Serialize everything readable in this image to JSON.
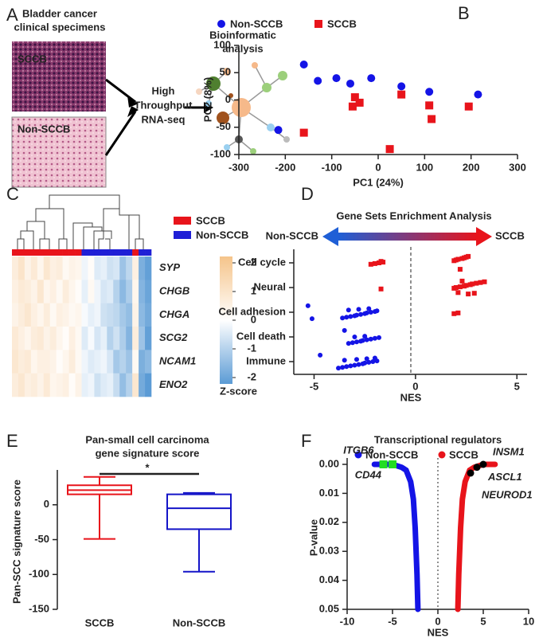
{
  "panel_labels": [
    "A",
    "B",
    "C",
    "D",
    "E",
    "F"
  ],
  "panel_a": {
    "title": [
      "Bladder cancer",
      "clinical specimens"
    ],
    "images": [
      "SCCB",
      "Non-SCCB"
    ],
    "method": [
      "High",
      "Throughput",
      "RNA-seq"
    ],
    "analysis": [
      "Bioinformatic",
      "analysis"
    ]
  },
  "chart_data": [
    {
      "type": "scatter",
      "xlabel": "PC1 (24%)",
      "ylabel": "PC2 (8%)",
      "xlim": [
        -300,
        300
      ],
      "xticks": [
        -300,
        -200,
        -100,
        0,
        100,
        200,
        300
      ],
      "ylim": [
        -100,
        100
      ],
      "yticks": [
        -100,
        -50,
        0,
        50,
        100
      ],
      "legend": "top",
      "series": [
        {
          "name": "Non-SCCB",
          "color": "#1414e6",
          "marker": "circle",
          "x": [
            -215,
            -160,
            -130,
            -90,
            -60,
            -15,
            50,
            110,
            215
          ],
          "values": [
            -55,
            65,
            35,
            40,
            30,
            40,
            25,
            15,
            10
          ]
        },
        {
          "name": "SCCB",
          "color": "#e8141b",
          "marker": "square",
          "x": [
            -160,
            -50,
            -55,
            -40,
            50,
            25,
            110,
            115,
            195
          ],
          "values": [
            -60,
            5,
            -12,
            -5,
            10,
            -90,
            -10,
            -35,
            -12
          ]
        }
      ]
    },
    {
      "type": "heatmap",
      "rows": [
        "SYP",
        "CHGB",
        "CHGA",
        "SCG2",
        "NCAM1",
        "ENO2"
      ],
      "groups": [
        {
          "name": "SCCB",
          "color": "#e8141b"
        },
        {
          "name": "Non-SCCB",
          "color": "#1f1fd6"
        }
      ],
      "column_groups": [
        "SCCB",
        "SCCB",
        "SCCB",
        "SCCB",
        "SCCB",
        "SCCB",
        "SCCB",
        "SCCB",
        "SCCB",
        "SCCB",
        "SCCB",
        "Non-SCCB",
        "Non-SCCB",
        "Non-SCCB",
        "Non-SCCB",
        "Non-SCCB",
        "Non-SCCB",
        "Non-SCCB",
        "Non-SCCB",
        "SCCB",
        "Non-SCCB",
        "Non-SCCB"
      ],
      "values": [
        [
          0.6,
          0.9,
          0.4,
          0.7,
          0.3,
          0.8,
          0.5,
          0.6,
          0.2,
          0.4,
          0.3,
          -0.2,
          0.1,
          -0.4,
          -0.3,
          -0.6,
          -0.5,
          -1.2,
          -0.8,
          0.5,
          -1.6,
          -1.9
        ],
        [
          0.5,
          0.7,
          0.6,
          0.4,
          0.8,
          0.3,
          0.5,
          0.2,
          0.6,
          0.3,
          0.1,
          -0.3,
          0.2,
          -0.2,
          -0.5,
          -0.4,
          -0.9,
          -1.4,
          -1.0,
          0.3,
          -1.5,
          -1.8
        ],
        [
          0.4,
          0.6,
          0.8,
          0.5,
          0.3,
          0.6,
          0.2,
          0.5,
          0.4,
          0.2,
          0.3,
          -0.1,
          -0.3,
          -0.2,
          -0.6,
          -0.7,
          -0.8,
          -1.1,
          -1.3,
          0.4,
          -1.4,
          -1.7
        ],
        [
          0.7,
          0.5,
          0.3,
          0.6,
          0.7,
          0.4,
          0.6,
          0.3,
          0.1,
          0.5,
          0.2,
          -0.4,
          -0.1,
          -0.5,
          -0.3,
          -0.9,
          -0.6,
          -1.0,
          -1.5,
          0.6,
          -1.2,
          -1.9
        ],
        [
          0.8,
          0.6,
          0.7,
          0.3,
          0.5,
          0.5,
          0.4,
          0.1,
          0.3,
          0.6,
          0.2,
          -0.2,
          -0.4,
          -0.3,
          -0.2,
          -0.5,
          -1.1,
          -0.9,
          -1.2,
          0.2,
          -1.6,
          -1.4
        ],
        [
          0.6,
          0.8,
          0.5,
          0.6,
          0.4,
          0.7,
          0.3,
          0.4,
          0.5,
          0.1,
          0.4,
          -0.3,
          -0.2,
          -0.6,
          -0.4,
          -0.3,
          -0.7,
          -1.3,
          -0.9,
          0.8,
          -1.7,
          -2.0
        ]
      ],
      "colorscale": [
        "#5b9bd5",
        "#ffffff",
        "#f5c48a"
      ],
      "zlim": [
        -2,
        2
      ],
      "zticks": [
        2,
        1,
        0,
        -1,
        -2
      ],
      "zlabel": "Z-score"
    },
    {
      "type": "strip",
      "title": "Gene Sets Enrichment Analysis",
      "arrow_labels": [
        "Non-SCCB",
        "SCCB"
      ],
      "xlabel": "NES",
      "xlim": [
        -6,
        5.5
      ],
      "xticks": [
        -5,
        0,
        5
      ],
      "categories": [
        "Cell cycle",
        "Neural",
        "Cell adhesion",
        "Cell death",
        "Immune"
      ],
      "series": [
        {
          "name": "Non-SCCB",
          "color": "#1414e6",
          "values": [
            [],
            [],
            [
              -5.3,
              -5.1,
              -3.6,
              -3.4,
              -3.2,
              -3.0,
              -2.9,
              -2.7,
              -2.5,
              -2.4,
              -2.2,
              -2.0,
              -1.9,
              -3.3,
              -2.8,
              -2.3
            ],
            [
              -3.5,
              -3.3,
              -3.1,
              -2.9,
              -2.7,
              -2.6,
              -2.4,
              -2.2,
              -2.0,
              -1.8,
              -3.0,
              -2.5
            ],
            [
              -4.7,
              -3.8,
              -3.6,
              -3.4,
              -3.2,
              -3.0,
              -2.8,
              -2.6,
              -2.5,
              -2.3,
              -2.1,
              -1.9,
              -3.5,
              -2.9,
              -2.4,
              -2.0
            ]
          ]
        },
        {
          "name": "SCCB",
          "color": "#e8141b",
          "values": [
            [
              -2.2,
              -2.0,
              -1.8,
              -1.6,
              -1.7,
              1.9,
              2.0,
              2.1,
              2.3,
              2.4,
              2.5,
              2.6,
              2.2
            ],
            [
              -1.7,
              1.9,
              2.0,
              2.2,
              2.4,
              2.5,
              2.7,
              2.8,
              3.0,
              3.2,
              3.4,
              2.3,
              2.6,
              2.9,
              2.1
            ],
            [
              1.9,
              2.1
            ],
            [],
            []
          ]
        }
      ]
    },
    {
      "type": "box",
      "title": [
        "Pan-small cell carcinoma",
        "gene signature score"
      ],
      "ylabel": "Pan-SCC signature score",
      "annotation": "*",
      "categories": [
        "SCCB",
        "Non-SCCB"
      ],
      "colors": [
        "#e8141b",
        "#1414c8"
      ],
      "boxes": [
        {
          "min": -49,
          "q1": 15,
          "median": 21,
          "q3": 28,
          "max": 40
        },
        {
          "min": -96,
          "q1": -35,
          "median": -5,
          "q3": 15,
          "max": 17
        }
      ],
      "ylim": [
        -150,
        50
      ],
      "yticks": [
        -150,
        -100,
        -50,
        0
      ]
    },
    {
      "type": "line",
      "title": "Transcriptional regulators",
      "xlabel": "NES",
      "ylabel": "P-value",
      "xlim": [
        -10,
        10
      ],
      "xticks": [
        -10,
        -5,
        0,
        5,
        10
      ],
      "ylim": [
        0,
        0.05
      ],
      "y_inverted": true,
      "yticks": [
        {
          "value": 0,
          "label": "0.00"
        },
        {
          "value": 0.01,
          "label": "0.01"
        },
        {
          "value": 0.02,
          "label": "0.02"
        },
        {
          "value": 0.03,
          "label": "0.03"
        },
        {
          "value": 0.04,
          "label": "0.04"
        },
        {
          "value": 0.05,
          "label": "0.05"
        }
      ],
      "series": [
        {
          "name": "Non-SCCB",
          "color": "#1414e6",
          "x": [
            -7,
            -6,
            -5,
            -4,
            -3.5,
            -3,
            -2.7,
            -2.5,
            -2.3,
            -2.2
          ],
          "values": [
            0,
            0,
            0,
            0.001,
            0.002,
            0.006,
            0.012,
            0.022,
            0.038,
            0.05
          ]
        },
        {
          "name": "SCCB",
          "color": "#e8141b",
          "x": [
            2.2,
            2.3,
            2.5,
            2.7,
            3,
            3.5,
            4,
            5,
            6,
            6.3
          ],
          "values": [
            0.05,
            0.038,
            0.022,
            0.012,
            0.006,
            0.002,
            0.001,
            0,
            0,
            0
          ]
        }
      ],
      "highlights": [
        {
          "label": "ITGB6",
          "x": -6,
          "y": 0,
          "color": "#22dd22",
          "marker": "square",
          "label_color": "#1f3fd6"
        },
        {
          "label": "CD44",
          "x": -5,
          "y": 0,
          "color": "#22dd22",
          "marker": "square",
          "label_color": "#1f3fd6"
        },
        {
          "label": "INSM1",
          "x": 5,
          "y": 0,
          "color": "#000000",
          "marker": "circle",
          "label_color": "#e8141b"
        },
        {
          "label": "ASCL1",
          "x": 4.3,
          "y": 0.001,
          "color": "#000000",
          "marker": "circle",
          "label_color": "#e8141b"
        },
        {
          "label": "NEUROD1",
          "x": 3.6,
          "y": 0.003,
          "color": "#000000",
          "marker": "circle",
          "label_color": "#e8141b"
        }
      ]
    }
  ]
}
